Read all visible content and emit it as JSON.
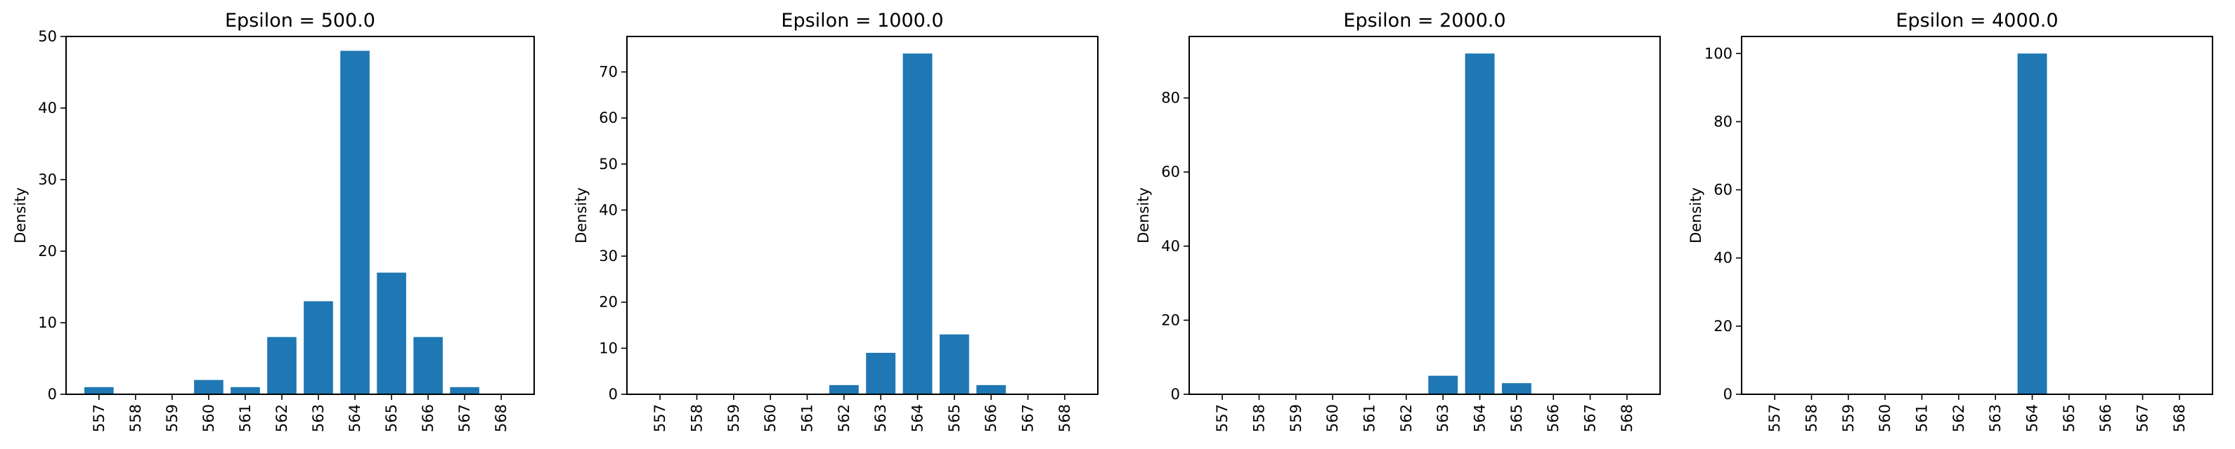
{
  "colors": {
    "bar": "#1f77b4",
    "background": "#ffffff",
    "axis": "#000000"
  },
  "chart_data": [
    {
      "type": "bar",
      "title": "Epsilon = 500.0",
      "ylabel": "Density",
      "xlabel": "",
      "categories": [
        "557",
        "558",
        "559",
        "560",
        "561",
        "562",
        "563",
        "564",
        "565",
        "566",
        "567",
        "568"
      ],
      "values": [
        1,
        0,
        0,
        2,
        1,
        8,
        13,
        48,
        17,
        8,
        1,
        0
      ],
      "ylim": [
        0,
        50
      ],
      "yticks": [
        0,
        10,
        20,
        30,
        40,
        50
      ],
      "grid": false
    },
    {
      "type": "bar",
      "title": "Epsilon = 1000.0",
      "ylabel": "Density",
      "xlabel": "",
      "categories": [
        "557",
        "558",
        "559",
        "560",
        "561",
        "562",
        "563",
        "564",
        "565",
        "566",
        "567",
        "568"
      ],
      "values": [
        0,
        0,
        0,
        0,
        0,
        2,
        9,
        74,
        13,
        2,
        0,
        0
      ],
      "ylim": [
        0,
        77.7
      ],
      "yticks": [
        0,
        10,
        20,
        30,
        40,
        50,
        60,
        70
      ],
      "grid": false
    },
    {
      "type": "bar",
      "title": "Epsilon = 2000.0",
      "ylabel": "Density",
      "xlabel": "",
      "categories": [
        "557",
        "558",
        "559",
        "560",
        "561",
        "562",
        "563",
        "564",
        "565",
        "566",
        "567",
        "568"
      ],
      "values": [
        0,
        0,
        0,
        0,
        0,
        0,
        5,
        92,
        3,
        0,
        0,
        0
      ],
      "ylim": [
        0,
        96.6
      ],
      "yticks": [
        0,
        20,
        40,
        60,
        80
      ],
      "grid": false
    },
    {
      "type": "bar",
      "title": "Epsilon = 4000.0",
      "ylabel": "Density",
      "xlabel": "",
      "categories": [
        "557",
        "558",
        "559",
        "560",
        "561",
        "562",
        "563",
        "564",
        "565",
        "566",
        "567",
        "568"
      ],
      "values": [
        0,
        0,
        0,
        0,
        0,
        0,
        0,
        100,
        0,
        0,
        0,
        0
      ],
      "ylim": [
        0,
        105
      ],
      "yticks": [
        0,
        20,
        40,
        60,
        80,
        100
      ],
      "grid": false
    }
  ]
}
